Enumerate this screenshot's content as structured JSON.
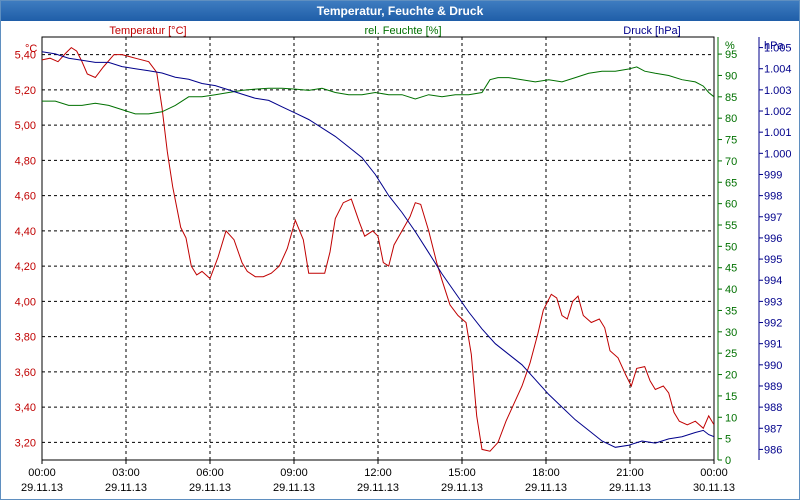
{
  "window": {
    "title": "Temperatur, Feuchte & Druck"
  },
  "chart_data": {
    "type": "line",
    "title": "Temperatur, Feuchte & Druck",
    "x_ticks": [
      {
        "time": "00:00",
        "date": "29.11.13"
      },
      {
        "time": "03:00",
        "date": "29.11.13"
      },
      {
        "time": "06:00",
        "date": "29.11.13"
      },
      {
        "time": "09:00",
        "date": "29.11.13"
      },
      {
        "time": "12:00",
        "date": "29.11.13"
      },
      {
        "time": "15:00",
        "date": "29.11.13"
      },
      {
        "time": "18:00",
        "date": "29.11.13"
      },
      {
        "time": "21:00",
        "date": "29.11.13"
      },
      {
        "time": "00:00",
        "date": "30.11.13"
      }
    ],
    "xlim": [
      0,
      24
    ],
    "axes": {
      "temperature": {
        "unit": "°C",
        "label": "Temperatur [°C]",
        "color": "#c00000",
        "ylim": [
          3.1,
          5.5
        ],
        "ticks": [
          3.2,
          3.4,
          3.6,
          3.8,
          4.0,
          4.2,
          4.4,
          4.6,
          4.8,
          5.0,
          5.2,
          5.4
        ],
        "tick_labels": [
          "3,20",
          "3,40",
          "3,60",
          "3,80",
          "4,00",
          "4,20",
          "4,40",
          "4,60",
          "4,80",
          "5,00",
          "5,20",
          "5,40"
        ]
      },
      "humidity": {
        "unit": "%",
        "label": "rel. Feuchte [%]",
        "color": "#007000",
        "ylim": [
          0,
          99
        ],
        "ticks": [
          0,
          5,
          10,
          15,
          20,
          25,
          30,
          35,
          40,
          45,
          50,
          55,
          60,
          65,
          70,
          75,
          80,
          85,
          90,
          95
        ],
        "tick_labels": [
          "0",
          "5",
          "10",
          "15",
          "20",
          "25",
          "30",
          "35",
          "40",
          "45",
          "50",
          "55",
          "60",
          "65",
          "70",
          "75",
          "80",
          "85",
          "90",
          "95"
        ]
      },
      "pressure": {
        "unit": "hPa",
        "label": "Druck [hPa]",
        "color": "#00008b",
        "ylim": [
          985.5,
          1005.5
        ],
        "ticks": [
          986,
          987,
          988,
          989,
          990,
          991,
          992,
          993,
          994,
          995,
          996,
          997,
          998,
          999,
          1000,
          1001,
          1002,
          1003,
          1004,
          1005
        ],
        "tick_labels": [
          "986",
          "987",
          "988",
          "989",
          "990",
          "991",
          "992",
          "993",
          "994",
          "995",
          "996",
          "997",
          "998",
          "999",
          "1.000",
          "1.001",
          "1.002",
          "1.003",
          "1.004",
          "1.005"
        ]
      }
    },
    "series": [
      {
        "name": "Temperatur",
        "axis": "temperature",
        "color": "#c00000",
        "points": [
          [
            0.0,
            5.37
          ],
          [
            0.3,
            5.38
          ],
          [
            0.6,
            5.36
          ],
          [
            0.9,
            5.41
          ],
          [
            1.1,
            5.44
          ],
          [
            1.3,
            5.42
          ],
          [
            1.5,
            5.36
          ],
          [
            1.7,
            5.29
          ],
          [
            2.0,
            5.27
          ],
          [
            2.3,
            5.33
          ],
          [
            2.7,
            5.4
          ],
          [
            3.0,
            5.4
          ],
          [
            3.5,
            5.38
          ],
          [
            4.0,
            5.36
          ],
          [
            4.3,
            5.3
          ],
          [
            4.5,
            5.1
          ],
          [
            4.7,
            4.85
          ],
          [
            4.9,
            4.65
          ],
          [
            5.2,
            4.42
          ],
          [
            5.4,
            4.36
          ],
          [
            5.6,
            4.2
          ],
          [
            5.8,
            4.15
          ],
          [
            6.0,
            4.17
          ],
          [
            6.3,
            4.13
          ],
          [
            6.6,
            4.25
          ],
          [
            6.9,
            4.4
          ],
          [
            7.2,
            4.35
          ],
          [
            7.5,
            4.22
          ],
          [
            7.7,
            4.17
          ],
          [
            8.0,
            4.14
          ],
          [
            8.3,
            4.14
          ],
          [
            8.6,
            4.16
          ],
          [
            8.9,
            4.2
          ],
          [
            9.2,
            4.3
          ],
          [
            9.5,
            4.46
          ],
          [
            9.8,
            4.35
          ],
          [
            10.0,
            4.16
          ],
          [
            10.3,
            4.16
          ],
          [
            10.6,
            4.16
          ],
          [
            10.8,
            4.28
          ],
          [
            11.0,
            4.47
          ],
          [
            11.3,
            4.56
          ],
          [
            11.6,
            4.58
          ],
          [
            11.9,
            4.45
          ],
          [
            12.1,
            4.37
          ],
          [
            12.4,
            4.4
          ],
          [
            12.6,
            4.37
          ],
          [
            12.8,
            4.22
          ],
          [
            13.0,
            4.2
          ],
          [
            13.2,
            4.32
          ],
          [
            13.5,
            4.4
          ],
          [
            13.8,
            4.48
          ],
          [
            14.0,
            4.56
          ],
          [
            14.2,
            4.55
          ],
          [
            14.5,
            4.4
          ],
          [
            14.8,
            4.22
          ],
          [
            15.0,
            4.12
          ],
          [
            15.3,
            3.98
          ],
          [
            15.6,
            3.92
          ],
          [
            15.9,
            3.88
          ],
          [
            16.1,
            3.7
          ],
          [
            16.3,
            3.35
          ],
          [
            16.5,
            3.16
          ],
          [
            16.8,
            3.15
          ],
          [
            17.1,
            3.2
          ],
          [
            17.4,
            3.32
          ],
          [
            17.7,
            3.42
          ],
          [
            18.0,
            3.52
          ],
          [
            18.3,
            3.65
          ],
          [
            18.6,
            3.82
          ],
          [
            18.8,
            3.95
          ],
          [
            19.1,
            4.04
          ],
          [
            19.3,
            4.02
          ],
          [
            19.5,
            3.92
          ],
          [
            19.7,
            3.9
          ],
          [
            19.9,
            4.0
          ],
          [
            20.1,
            4.03
          ],
          [
            20.3,
            3.92
          ],
          [
            20.6,
            3.88
          ],
          [
            20.9,
            3.9
          ],
          [
            21.1,
            3.85
          ],
          [
            21.3,
            3.72
          ],
          [
            21.6,
            3.68
          ],
          [
            21.9,
            3.58
          ],
          [
            22.1,
            3.52
          ],
          [
            22.3,
            3.62
          ],
          [
            22.6,
            3.63
          ],
          [
            22.8,
            3.55
          ],
          [
            23.0,
            3.5
          ],
          [
            23.3,
            3.52
          ],
          [
            23.5,
            3.48
          ],
          [
            23.7,
            3.37
          ],
          [
            23.9,
            3.32
          ],
          [
            24.2,
            3.3
          ],
          [
            24.5,
            3.32
          ],
          [
            24.8,
            3.28
          ],
          [
            25.0,
            3.35
          ],
          [
            25.2,
            3.3
          ]
        ]
      },
      {
        "name": "rel. Feuchte",
        "axis": "humidity",
        "color": "#007000",
        "points": [
          [
            0.0,
            84
          ],
          [
            0.5,
            84
          ],
          [
            1.0,
            83
          ],
          [
            1.5,
            83
          ],
          [
            2.0,
            83.5
          ],
          [
            2.5,
            83
          ],
          [
            3.0,
            82
          ],
          [
            3.5,
            81
          ],
          [
            4.0,
            81
          ],
          [
            4.5,
            81.5
          ],
          [
            5.0,
            83
          ],
          [
            5.5,
            85
          ],
          [
            6.0,
            85
          ],
          [
            6.5,
            85.5
          ],
          [
            7.0,
            86
          ],
          [
            7.5,
            86.5
          ],
          [
            8.0,
            86.8
          ],
          [
            8.5,
            87
          ],
          [
            9.0,
            87
          ],
          [
            9.5,
            86.8
          ],
          [
            10.0,
            86.5
          ],
          [
            10.5,
            87
          ],
          [
            11.0,
            86
          ],
          [
            11.5,
            85.5
          ],
          [
            12.0,
            85.5
          ],
          [
            12.5,
            86
          ],
          [
            13.0,
            85.5
          ],
          [
            13.5,
            85.5
          ],
          [
            14.0,
            84.5
          ],
          [
            14.5,
            85.5
          ],
          [
            15.0,
            85
          ],
          [
            15.5,
            85.5
          ],
          [
            16.0,
            85.5
          ],
          [
            16.5,
            86
          ],
          [
            16.8,
            89
          ],
          [
            17.1,
            89.5
          ],
          [
            17.5,
            89.5
          ],
          [
            18.0,
            89
          ],
          [
            18.5,
            88.5
          ],
          [
            19.0,
            89
          ],
          [
            19.5,
            88.5
          ],
          [
            20.0,
            89.5
          ],
          [
            20.5,
            90.5
          ],
          [
            21.0,
            91
          ],
          [
            21.5,
            91
          ],
          [
            22.0,
            91.5
          ],
          [
            22.3,
            92
          ],
          [
            22.6,
            91
          ],
          [
            23.0,
            90.5
          ],
          [
            23.5,
            90
          ],
          [
            24.0,
            89
          ],
          [
            24.5,
            88.5
          ],
          [
            24.8,
            87.5
          ],
          [
            25.0,
            86
          ],
          [
            25.2,
            85
          ]
        ]
      },
      {
        "name": "Druck",
        "axis": "pressure",
        "color": "#00008b",
        "points": [
          [
            0.0,
            1004.8
          ],
          [
            0.5,
            1004.7
          ],
          [
            1.0,
            1004.5
          ],
          [
            1.5,
            1004.4
          ],
          [
            2.0,
            1004.3
          ],
          [
            2.5,
            1004.3
          ],
          [
            3.0,
            1004.1
          ],
          [
            3.5,
            1004.0
          ],
          [
            4.0,
            1003.9
          ],
          [
            4.5,
            1003.8
          ],
          [
            5.0,
            1003.6
          ],
          [
            5.5,
            1003.5
          ],
          [
            6.0,
            1003.3
          ],
          [
            6.5,
            1003.2
          ],
          [
            7.0,
            1003.0
          ],
          [
            7.5,
            1002.8
          ],
          [
            8.0,
            1002.6
          ],
          [
            8.5,
            1002.5
          ],
          [
            9.0,
            1002.2
          ],
          [
            9.5,
            1001.9
          ],
          [
            10.0,
            1001.6
          ],
          [
            10.5,
            1001.2
          ],
          [
            11.0,
            1000.8
          ],
          [
            11.5,
            1000.3
          ],
          [
            12.0,
            999.8
          ],
          [
            12.5,
            999.0
          ],
          [
            13.0,
            998.0
          ],
          [
            13.5,
            997.2
          ],
          [
            14.0,
            996.3
          ],
          [
            14.5,
            995.3
          ],
          [
            15.0,
            994.3
          ],
          [
            15.5,
            993.4
          ],
          [
            16.0,
            992.5
          ],
          [
            16.5,
            991.7
          ],
          [
            17.0,
            991.0
          ],
          [
            17.5,
            990.5
          ],
          [
            18.0,
            990.0
          ],
          [
            18.5,
            989.3
          ],
          [
            19.0,
            988.6
          ],
          [
            19.5,
            988.0
          ],
          [
            20.0,
            987.4
          ],
          [
            20.5,
            986.9
          ],
          [
            21.0,
            986.4
          ],
          [
            21.5,
            986.1
          ],
          [
            22.0,
            986.2
          ],
          [
            22.5,
            986.4
          ],
          [
            23.0,
            986.3
          ],
          [
            23.5,
            986.5
          ],
          [
            24.0,
            986.6
          ],
          [
            24.5,
            986.8
          ],
          [
            24.8,
            986.9
          ],
          [
            25.0,
            986.7
          ],
          [
            25.2,
            986.6
          ]
        ]
      }
    ]
  }
}
